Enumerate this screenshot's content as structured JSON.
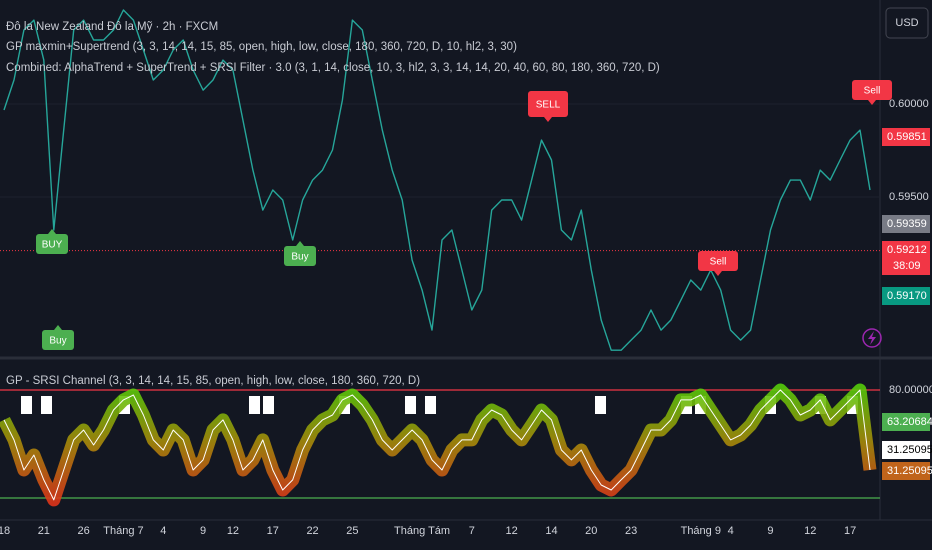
{
  "chart_data": [
    {
      "type": "line",
      "title": "Đô la New Zealand Đô la Mỹ · 2h · FXCM",
      "indicators": [
        "GP maxmin+Supertrend (3, 3, 14, 14, 15, 85, open, high, low, close, 180, 360, 720, D, 10, hl2, 3, 30)",
        "Combined: AlphaTrend + SuperTrend + SRSI Filter · 3.0 (3, 1, 14, close, 10, 3, hl2, 3, 3, 14, 14, 20, 40, 60, 80, 180, 360, 720, D)"
      ],
      "currency": "USD",
      "countdown": "38:09",
      "color": "#26a69a",
      "values": [
        0.59968,
        0.60129,
        0.60398,
        0.60451,
        0.60236,
        0.59323,
        0.5986,
        0.60398,
        0.60451,
        0.60344,
        0.60344,
        0.60398,
        0.60505,
        0.60451,
        0.6029,
        0.60129,
        0.60183,
        0.6029,
        0.60344,
        0.60183,
        0.60075,
        0.60129,
        0.60236,
        0.60183,
        0.59914,
        0.59645,
        0.5943,
        0.59538,
        0.59484,
        0.59269,
        0.59484,
        0.59591,
        0.59645,
        0.59753,
        0.60021,
        0.60451,
        0.60398,
        0.60129,
        0.5986,
        0.59645,
        0.59484,
        0.59161,
        0.59,
        0.58785,
        0.59269,
        0.59323,
        0.59108,
        0.58893,
        0.59,
        0.5943,
        0.59484,
        0.59484,
        0.59376,
        0.59591,
        0.59806,
        0.59699,
        0.59323,
        0.59269,
        0.5943,
        0.59108,
        0.58839,
        0.58677,
        0.58677,
        0.58731,
        0.58785,
        0.58893,
        0.58785,
        0.58839,
        0.58946,
        0.59054,
        0.59,
        0.59108,
        0.59,
        0.58785,
        0.58731,
        0.58785,
        0.59054,
        0.59323,
        0.59484,
        0.59591,
        0.59591,
        0.59484,
        0.59645,
        0.59591,
        0.59699,
        0.59806,
        0.5986,
        0.59538
      ],
      "ylim": [
        0.58651,
        0.60559
      ],
      "yticks": [
        {
          "value": 0.6,
          "label": "0.60000"
        },
        {
          "value": 0.595,
          "label": "0.59500"
        }
      ],
      "price_labels": [
        {
          "value": 0.59851,
          "label": "0.59851",
          "color": "#f23645"
        },
        {
          "value": 0.59359,
          "label": "0.59359",
          "color": "#787b86"
        },
        {
          "value": 0.59212,
          "label": "0.59212",
          "color": "#f23645"
        },
        {
          "value": 0.5917,
          "label": "0.59170",
          "color": "#089981"
        }
      ],
      "signals": [
        {
          "text": "BUY",
          "color": "#4caf50"
        },
        {
          "text": "Buy",
          "color": "#4caf50"
        },
        {
          "text": "Buy",
          "color": "#4caf50"
        },
        {
          "text": "SELL",
          "color": "#f23645"
        },
        {
          "text": "Sell",
          "color": "#f23645"
        },
        {
          "text": "Sell",
          "color": "#f23645"
        }
      ]
    },
    {
      "type": "line",
      "title": "GP - SRSI Channel (3, 3, 14, 14, 15, 85, open, high, low, close, 180, 360, 720, D)",
      "color": "#ffffff",
      "values": [
        64.3,
        53.8,
        38,
        45.9,
        32.8,
        22.3,
        38,
        53.8,
        59,
        51.1,
        59,
        69.5,
        74.8,
        77.4,
        66.9,
        53.8,
        48.5,
        59,
        53.8,
        38,
        43.3,
        59,
        64.3,
        53.8,
        38,
        43.3,
        53.8,
        38,
        27.5,
        32.8,
        48.5,
        59,
        64.3,
        66.9,
        74.8,
        77.4,
        72.1,
        64.3,
        53.8,
        48.5,
        53.8,
        59,
        53.8,
        43.3,
        38,
        48.5,
        53.8,
        53.8,
        64.3,
        69.5,
        66.9,
        59,
        53.8,
        61.6,
        69.5,
        64.3,
        48.5,
        43.3,
        48.5,
        38,
        30.1,
        27.5,
        32.8,
        38,
        48.5,
        59,
        59,
        64.3,
        74.8,
        74.8,
        77.4,
        69.5,
        61.6,
        53.8,
        56.4,
        61.6,
        69.5,
        74.8,
        80,
        74.8,
        66.9,
        69.5,
        74.8,
        64.3,
        69.5,
        74.8,
        80,
        38
      ],
      "ylim": [
        11.75,
        94.7
      ],
      "yticks": [
        {
          "value": 80,
          "label": "80.00000"
        }
      ],
      "value_boxes": [
        {
          "value": 63.20684,
          "color": "#4caf50"
        },
        {
          "value": 31.25095,
          "color": "#ffffff"
        },
        {
          "value": 31.25095,
          "color": "#c0641b"
        }
      ],
      "xticks": [
        {
          "value": 0,
          "label": "18"
        },
        {
          "value": 4,
          "label": "21"
        },
        {
          "value": 8,
          "label": "26"
        },
        {
          "value": 12,
          "label": "Tháng 7"
        },
        {
          "value": 16,
          "label": "4"
        },
        {
          "value": 20,
          "label": "9"
        },
        {
          "value": 23,
          "label": "12"
        },
        {
          "value": 27,
          "label": "17"
        },
        {
          "value": 31,
          "label": "22"
        },
        {
          "value": 35,
          "label": "25"
        },
        {
          "value": 42,
          "label": "Tháng Tám"
        },
        {
          "value": 47,
          "label": "7"
        },
        {
          "value": 51,
          "label": "12"
        },
        {
          "value": 55,
          "label": "14"
        },
        {
          "value": 59,
          "label": "20"
        },
        {
          "value": 63,
          "label": "23"
        },
        {
          "value": 70,
          "label": "Tháng 9"
        },
        {
          "value": 73,
          "label": "4"
        },
        {
          "value": 77,
          "label": "9"
        },
        {
          "value": 81,
          "label": "12"
        },
        {
          "value": 85,
          "label": "17"
        }
      ]
    }
  ]
}
